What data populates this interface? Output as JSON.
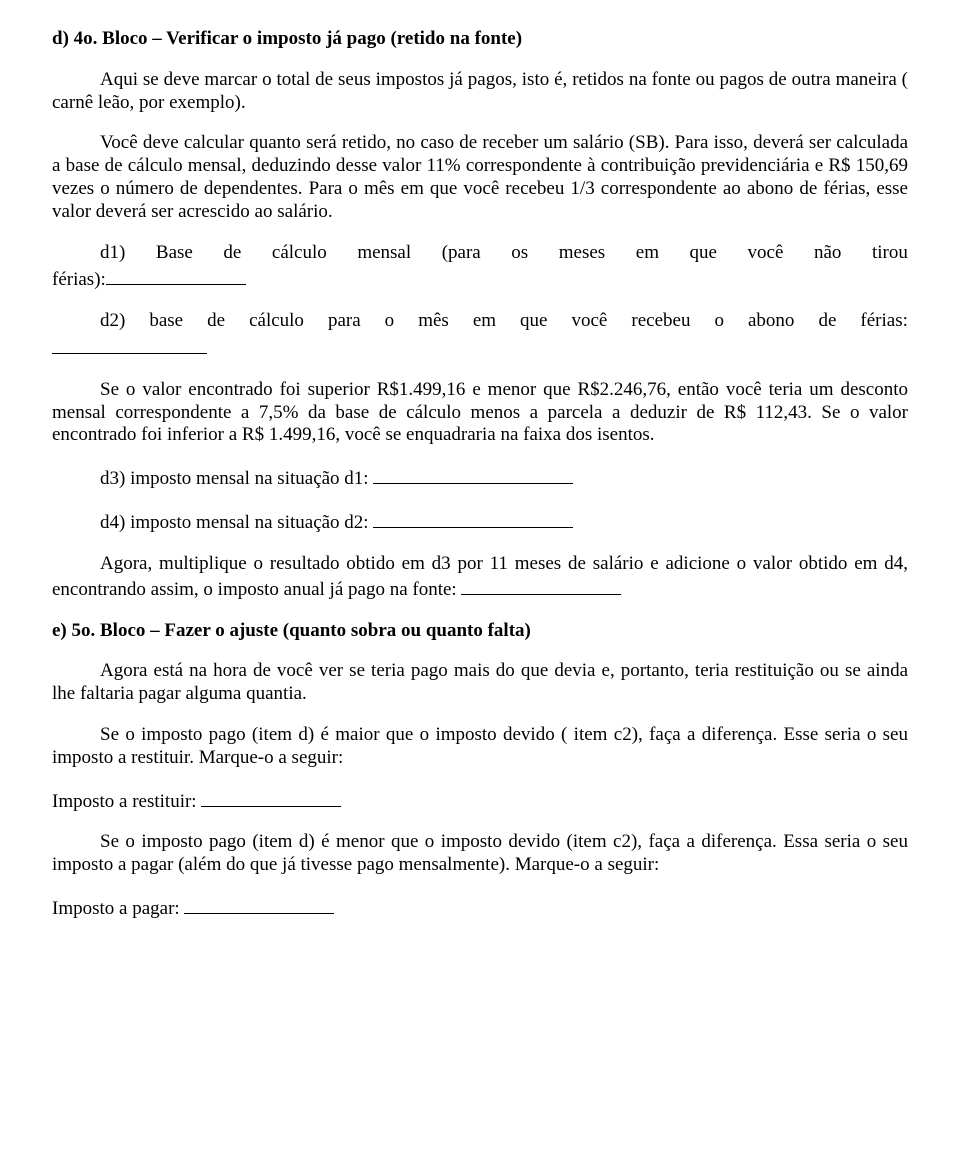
{
  "d": {
    "title_prefix": "d) 4o. Bloco – Verificar o imposto já pago (retido na fonte)",
    "p1": "Aqui se deve marcar o total de seus impostos já pagos, isto é, retidos na fonte ou pagos de outra maneira ( carnê leão, por exemplo).",
    "p2": "Você deve calcular quanto será retido, no caso de receber um salário (SB). Para isso, deverá ser calculada a base de cálculo mensal, deduzindo desse valor 11% correspondente à contribuição previdenciária e R$ 150,69 vezes o número de dependentes. Para o mês em que você recebeu 1/3 correspondente ao abono de férias, esse valor deverá ser acrescido ao salário.",
    "d1_words": [
      "d1)",
      "Base",
      "de",
      "cálculo",
      "mensal",
      "(para",
      "os",
      "meses",
      "em",
      "que",
      "você",
      "não",
      "tirou"
    ],
    "d1_tail": "férias):",
    "d2_words": [
      "d2)",
      "base",
      "de",
      "cálculo",
      "para",
      "o",
      "mês",
      "em",
      "que",
      "você",
      "recebeu",
      "o",
      "abono",
      "de",
      "férias:"
    ],
    "p3": "Se o valor encontrado foi superior R$1.499,16 e menor que R$2.246,76, então você teria um desconto mensal correspondente a 7,5% da base de cálculo menos a parcela a deduzir de R$ 112,43. Se o valor encontrado foi inferior a R$ 1.499,16, você se enquadraria na faixa dos isentos.",
    "d3": "d3) imposto mensal na situação d1: ",
    "d4": "d4) imposto mensal na situação d2: ",
    "p4a": "Agora, multiplique o resultado obtido em d3 por 11 meses de salário e adicione o valor obtido em d4, encontrando assim, o imposto anual já pago na fonte: "
  },
  "e": {
    "title": "e) 5o. Bloco – Fazer o ajuste (quanto sobra ou quanto falta)",
    "p1": "Agora está na hora de você ver se teria pago mais do que devia e, portanto, teria restituição ou se ainda lhe faltaria pagar alguma quantia.",
    "p2": "Se o imposto pago (item d) é maior que o imposto devido ( item c2), faça a diferença. Esse seria o seu imposto a restituir. Marque-o a seguir:",
    "restituir": "Imposto a restituir: ",
    "p3": "Se o imposto pago (item d) é menor que o imposto devido (item c2), faça a diferença. Essa seria o seu imposto a pagar (além do que já tivesse pago mensalmente). Marque-o a seguir:",
    "pagar": "Imposto a pagar: "
  },
  "style": {
    "blank_d1": 140,
    "blank_d2": 155,
    "blank_d3": 200,
    "blank_d4": 200,
    "blank_p4": 160,
    "blank_restituir": 140,
    "blank_pagar": 150
  }
}
